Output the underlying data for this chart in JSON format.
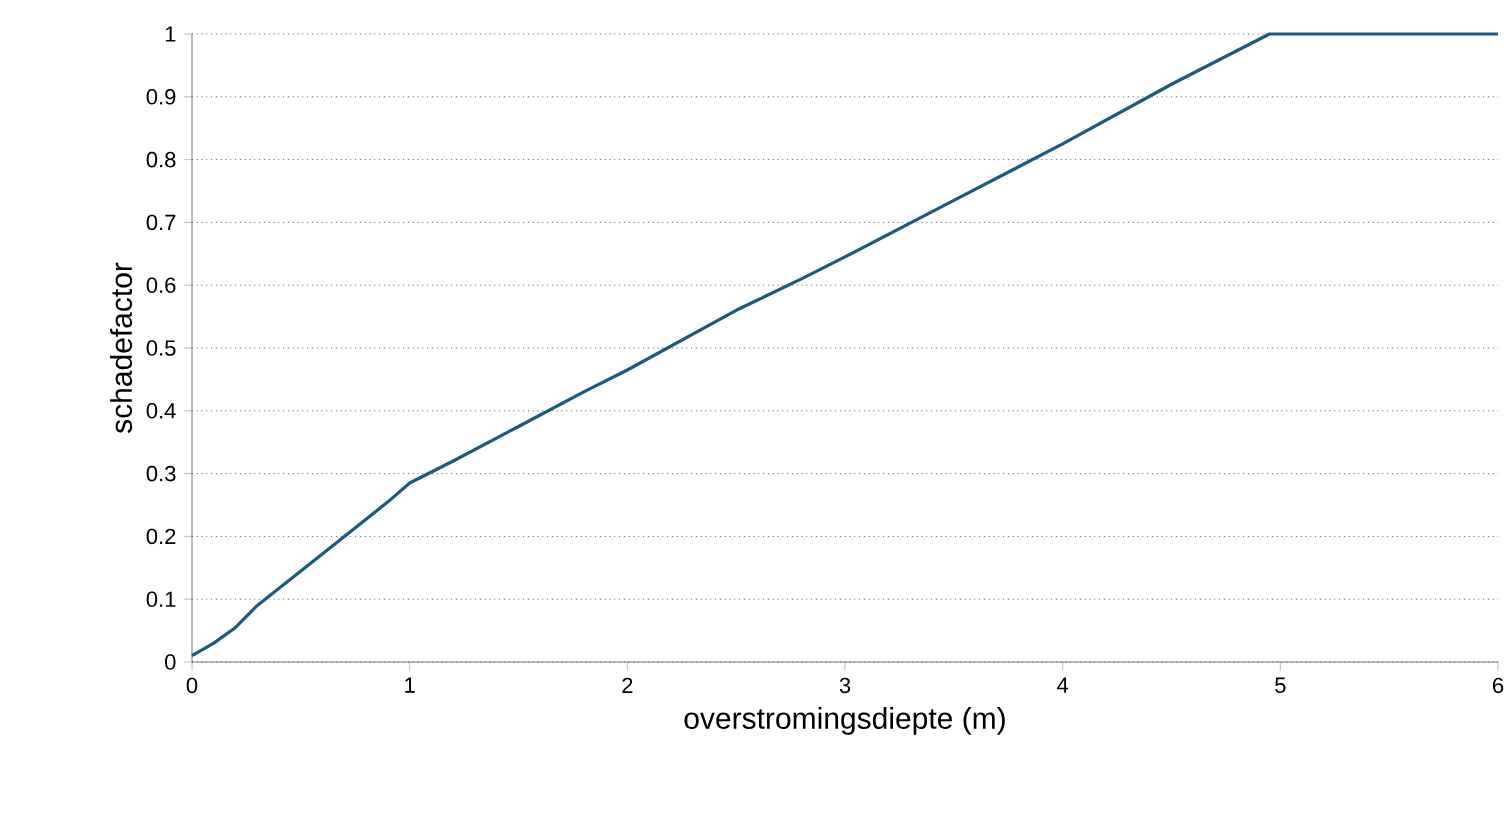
{
  "chart_data": {
    "type": "line",
    "xlabel": "overstromingsdiepte (m)",
    "ylabel": "schadefactor",
    "x": [
      0,
      0.1,
      0.2,
      0.3,
      0.5,
      0.7,
      0.9,
      1.0,
      1.2,
      1.5,
      1.8,
      2.0,
      2.5,
      2.8,
      3.0,
      3.5,
      4.0,
      4.5,
      4.95,
      6
    ],
    "series": [
      {
        "color": "#1a5a80",
        "values": [
          0.01,
          0.03,
          0.055,
          0.09,
          0.145,
          0.2,
          0.255,
          0.285,
          0.32,
          0.375,
          0.43,
          0.465,
          0.56,
          0.61,
          0.645,
          0.735,
          0.825,
          0.92,
          1.0,
          1.0
        ]
      }
    ],
    "xlim": [
      0,
      6
    ],
    "xticks": [
      0,
      1,
      2,
      3,
      4,
      5,
      6
    ],
    "ylim": [
      0,
      1
    ],
    "yticks": [
      0,
      0.1,
      0.2,
      0.3,
      0.4,
      0.5,
      0.6,
      0.7,
      0.8,
      0.9,
      1
    ],
    "grid": "y",
    "marker": "none",
    "line_style": "solid"
  }
}
